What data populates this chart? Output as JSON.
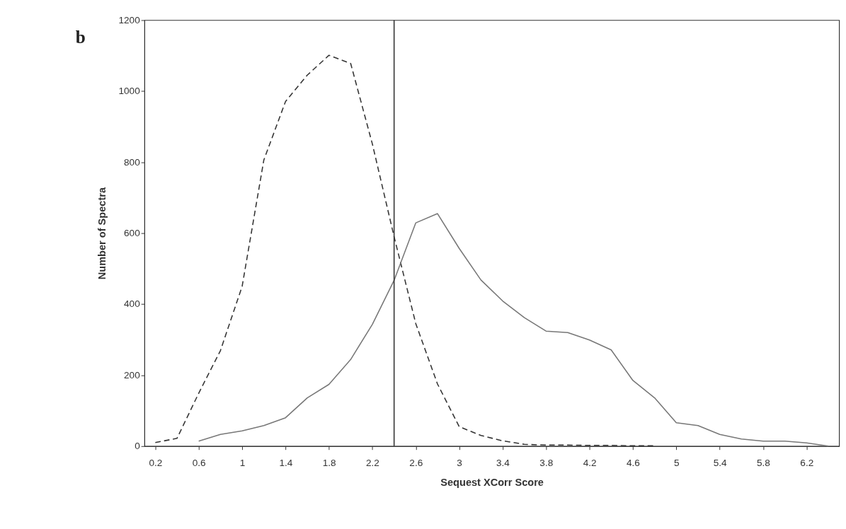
{
  "chart_data": {
    "type": "line",
    "xlabel": "Sequest XCorr Score",
    "ylabel": "Number of Spectra",
    "x": [
      0.2,
      0.4,
      0.6,
      0.8,
      1.0,
      1.2,
      1.4,
      1.6,
      1.8,
      2.0,
      2.2,
      2.4,
      2.6,
      2.8,
      3.0,
      3.2,
      3.4,
      3.6,
      3.8,
      4.0,
      4.2,
      4.4,
      4.6,
      4.8,
      5.0,
      5.2,
      5.4,
      5.6,
      5.8,
      6.0,
      6.2,
      6.4
    ],
    "series": [
      {
        "color": "#333333",
        "line_style": "dashed",
        "values": [
          10,
          22,
          149,
          269,
          450,
          806,
          971,
          1045,
          1101,
          1078,
          851,
          590,
          345,
          175,
          55,
          30,
          15,
          5,
          3,
          3,
          2,
          2,
          1,
          1,
          null,
          null,
          null,
          null,
          null,
          null,
          null,
          null
        ]
      },
      {
        "color": "#777777",
        "line_style": "solid",
        "values": [
          null,
          null,
          14,
          33,
          43,
          58,
          80,
          136,
          174,
          244,
          343,
          467,
          629,
          655,
          557,
          468,
          409,
          362,
          324,
          320,
          299,
          271,
          185,
          136,
          66,
          58,
          33,
          20,
          14,
          14,
          9,
          0
        ]
      }
    ],
    "xlim": [
      0.1,
      6.5
    ],
    "xticks": [
      0.2,
      0.6,
      1,
      1.4,
      1.8,
      2.2,
      2.6,
      3,
      3.4,
      3.8,
      4.2,
      4.6,
      5,
      5.4,
      5.8,
      6.2
    ],
    "ylim": [
      0,
      1200
    ],
    "yticks": [
      0,
      200,
      400,
      600,
      800,
      1000,
      1200
    ],
    "ref_lines": [
      {
        "axis": "x",
        "value": 2.4,
        "color": "#333333"
      }
    ],
    "annotations": [
      "b"
    ],
    "grid": false,
    "marker": "none"
  }
}
